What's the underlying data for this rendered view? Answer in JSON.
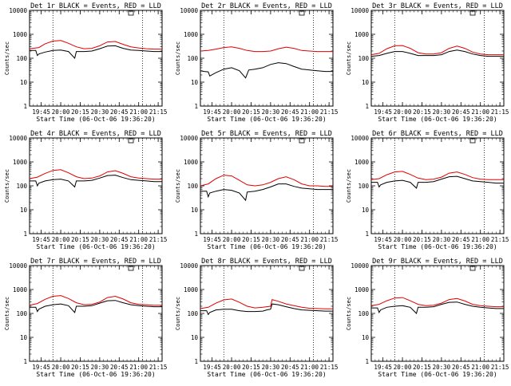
{
  "x_ticks": [
    "19:45",
    "20:00",
    "20:15",
    "20:30",
    "20:45",
    "21:00",
    "21:15"
  ],
  "y_ticks": [
    "1",
    "10",
    "100",
    "1000",
    "10000"
  ],
  "xlabel": "Start Time (06-Oct-06 19:36:20)",
  "ylabel": "Counts/sec",
  "colors": {
    "events": "#000000",
    "lld": "#e00000"
  },
  "chart_data": [
    {
      "type": "line",
      "title": "Det 1r BLACK = Events, RED = LLD",
      "xlim": [
        19.6,
        21.3
      ],
      "ylim": [
        1,
        10000
      ],
      "yscale": "log",
      "dotted_x": [
        19.9,
        21.05
      ],
      "series": [
        {
          "key": "lld",
          "x": [
            19.6,
            19.72,
            19.8,
            19.9,
            20.0,
            20.1,
            20.2,
            20.3,
            20.4,
            20.5,
            20.6,
            20.7,
            20.8,
            20.9,
            21.0,
            21.1,
            21.2,
            21.3
          ],
          "values": [
            250,
            280,
            400,
            520,
            550,
            420,
            300,
            250,
            260,
            330,
            480,
            500,
            380,
            300,
            270,
            250,
            240,
            240
          ]
        },
        {
          "key": "events",
          "x": [
            19.6,
            19.68,
            19.7,
            19.72,
            19.8,
            19.9,
            20.0,
            20.1,
            20.18,
            20.2,
            20.3,
            20.4,
            20.5,
            20.6,
            20.7,
            20.8,
            20.9,
            21.0,
            21.1,
            21.2,
            21.3
          ],
          "values": [
            210,
            210,
            130,
            150,
            180,
            210,
            220,
            190,
            100,
            190,
            190,
            200,
            250,
            320,
            330,
            260,
            220,
            210,
            200,
            190,
            190
          ]
        }
      ]
    },
    {
      "type": "line",
      "title": "Det 2r BLACK = Events, RED = LLD",
      "xlim": [
        19.6,
        21.3
      ],
      "ylim": [
        1,
        10000
      ],
      "yscale": "log",
      "dotted_x": [
        19.9,
        21.05
      ],
      "series": [
        {
          "key": "lld",
          "x": [
            19.6,
            19.7,
            19.8,
            19.9,
            20.0,
            20.1,
            20.2,
            20.3,
            20.4,
            20.5,
            20.6,
            20.7,
            20.8,
            20.9,
            21.0,
            21.1,
            21.2,
            21.3
          ],
          "values": [
            200,
            210,
            240,
            280,
            300,
            260,
            210,
            190,
            190,
            200,
            250,
            290,
            260,
            210,
            200,
            190,
            190,
            190
          ]
        },
        {
          "key": "events",
          "x": [
            19.6,
            19.65,
            19.7,
            19.72,
            19.8,
            19.9,
            20.0,
            20.1,
            20.18,
            20.22,
            20.3,
            20.4,
            20.5,
            20.6,
            20.7,
            20.8,
            20.9,
            21.0,
            21.1,
            21.2,
            21.3
          ],
          "values": [
            30,
            28,
            27,
            18,
            25,
            35,
            40,
            30,
            15,
            32,
            35,
            40,
            55,
            65,
            60,
            45,
            35,
            32,
            30,
            28,
            28
          ]
        }
      ]
    },
    {
      "type": "line",
      "title": "Det 3r BLACK = Events, RED = LLD",
      "xlim": [
        19.6,
        21.3
      ],
      "ylim": [
        1,
        10000
      ],
      "yscale": "log",
      "dotted_x": [
        19.9,
        21.05
      ],
      "series": [
        {
          "key": "lld",
          "x": [
            19.6,
            19.7,
            19.8,
            19.9,
            20.0,
            20.1,
            20.2,
            20.3,
            20.4,
            20.5,
            20.6,
            20.7,
            20.8,
            20.9,
            21.0,
            21.1,
            21.2,
            21.3
          ],
          "values": [
            140,
            160,
            250,
            330,
            340,
            260,
            170,
            150,
            150,
            170,
            260,
            320,
            260,
            180,
            150,
            140,
            140,
            140
          ]
        },
        {
          "key": "events",
          "x": [
            19.6,
            19.7,
            19.8,
            19.9,
            20.0,
            20.1,
            20.2,
            20.3,
            20.4,
            20.5,
            20.6,
            20.7,
            20.8,
            20.9,
            21.0,
            21.1,
            21.2,
            21.3
          ],
          "values": [
            120,
            130,
            160,
            190,
            190,
            160,
            130,
            130,
            130,
            140,
            190,
            220,
            190,
            150,
            130,
            120,
            120,
            120
          ]
        }
      ]
    },
    {
      "type": "line",
      "title": "Det 4r BLACK = Events, RED = LLD",
      "xlim": [
        19.6,
        21.3
      ],
      "ylim": [
        1,
        10000
      ],
      "yscale": "log",
      "dotted_x": [
        19.9,
        21.05
      ],
      "series": [
        {
          "key": "lld",
          "x": [
            19.6,
            19.7,
            19.8,
            19.9,
            20.0,
            20.1,
            20.2,
            20.3,
            20.4,
            20.5,
            20.6,
            20.7,
            20.8,
            20.9,
            21.0,
            21.1,
            21.2,
            21.3
          ],
          "values": [
            200,
            230,
            330,
            440,
            470,
            350,
            240,
            200,
            210,
            260,
            380,
            430,
            330,
            240,
            210,
            200,
            190,
            190
          ]
        },
        {
          "key": "events",
          "x": [
            19.6,
            19.68,
            19.7,
            19.72,
            19.8,
            19.9,
            20.0,
            20.1,
            20.18,
            20.2,
            20.3,
            20.4,
            20.5,
            20.6,
            20.7,
            20.8,
            20.9,
            21.0,
            21.1,
            21.2,
            21.3
          ],
          "values": [
            160,
            160,
            100,
            130,
            160,
            180,
            190,
            160,
            90,
            160,
            160,
            170,
            210,
            270,
            280,
            220,
            180,
            170,
            160,
            150,
            150
          ]
        }
      ]
    },
    {
      "type": "line",
      "title": "Det 5r BLACK = Events, RED = LLD",
      "xlim": [
        19.6,
        21.3
      ],
      "ylim": [
        1,
        10000
      ],
      "yscale": "log",
      "dotted_x": [
        19.9,
        21.05
      ],
      "series": [
        {
          "key": "lld",
          "x": [
            19.6,
            19.7,
            19.8,
            19.9,
            20.0,
            20.1,
            20.2,
            20.3,
            20.4,
            20.5,
            20.6,
            20.7,
            20.8,
            20.9,
            21.0,
            21.1,
            21.2,
            21.3
          ],
          "values": [
            100,
            120,
            200,
            280,
            260,
            170,
            110,
            100,
            110,
            140,
            200,
            240,
            180,
            120,
            100,
            100,
            95,
            95
          ]
        },
        {
          "key": "events",
          "x": [
            19.6,
            19.68,
            19.7,
            19.72,
            19.8,
            19.9,
            20.0,
            20.1,
            20.18,
            20.2,
            20.3,
            20.4,
            20.5,
            20.6,
            20.7,
            20.8,
            20.9,
            21.0,
            21.1,
            21.2,
            21.3
          ],
          "values": [
            60,
            60,
            35,
            50,
            60,
            70,
            65,
            50,
            25,
            55,
            60,
            70,
            90,
            120,
            120,
            95,
            80,
            75,
            70,
            70,
            70
          ]
        }
      ]
    },
    {
      "type": "line",
      "title": "Det 6r BLACK = Events, RED = LLD",
      "xlim": [
        19.6,
        21.3
      ],
      "ylim": [
        1,
        10000
      ],
      "yscale": "log",
      "dotted_x": [
        19.9,
        21.05
      ],
      "series": [
        {
          "key": "lld",
          "x": [
            19.6,
            19.7,
            19.8,
            19.9,
            20.0,
            20.1,
            20.2,
            20.3,
            20.4,
            20.5,
            20.6,
            20.7,
            20.8,
            20.9,
            21.0,
            21.1,
            21.2,
            21.3
          ],
          "values": [
            180,
            200,
            290,
            380,
            400,
            300,
            210,
            180,
            190,
            230,
            340,
            380,
            300,
            220,
            190,
            180,
            180,
            180
          ]
        },
        {
          "key": "events",
          "x": [
            19.6,
            19.68,
            19.7,
            19.72,
            19.8,
            19.9,
            20.0,
            20.1,
            20.18,
            20.2,
            20.3,
            20.4,
            20.5,
            20.6,
            20.7,
            20.8,
            20.9,
            21.0,
            21.1,
            21.2,
            21.3
          ],
          "values": [
            140,
            140,
            90,
            110,
            140,
            160,
            170,
            140,
            80,
            140,
            140,
            150,
            190,
            240,
            250,
            200,
            160,
            150,
            140,
            130,
            130
          ]
        }
      ]
    },
    {
      "type": "line",
      "title": "Det 7r BLACK = Events, RED = LLD",
      "xlim": [
        19.6,
        21.3
      ],
      "ylim": [
        1,
        10000
      ],
      "yscale": "log",
      "dotted_x": [
        19.9,
        21.05
      ],
      "series": [
        {
          "key": "lld",
          "x": [
            19.6,
            19.7,
            19.8,
            19.9,
            20.0,
            20.1,
            20.2,
            20.3,
            20.4,
            20.5,
            20.6,
            20.7,
            20.8,
            20.9,
            21.0,
            21.1,
            21.2,
            21.3
          ],
          "values": [
            220,
            260,
            390,
            520,
            560,
            420,
            280,
            230,
            240,
            300,
            460,
            520,
            400,
            280,
            240,
            230,
            220,
            220
          ]
        },
        {
          "key": "events",
          "x": [
            19.6,
            19.68,
            19.7,
            19.72,
            19.8,
            19.9,
            20.0,
            20.1,
            20.18,
            20.2,
            20.3,
            20.4,
            20.5,
            20.6,
            20.7,
            20.8,
            20.9,
            21.0,
            21.1,
            21.2,
            21.3
          ],
          "values": [
            180,
            180,
            120,
            150,
            200,
            230,
            250,
            210,
            110,
            200,
            200,
            210,
            270,
            340,
            350,
            280,
            230,
            210,
            200,
            190,
            190
          ]
        }
      ]
    },
    {
      "type": "line",
      "title": "Det 8r BLACK = Events, RED = LLD",
      "xlim": [
        19.6,
        21.3
      ],
      "ylim": [
        1,
        10000
      ],
      "yscale": "log",
      "dotted_x": [
        19.9,
        21.05
      ],
      "series": [
        {
          "key": "lld",
          "x": [
            19.6,
            19.7,
            19.8,
            19.9,
            20.0,
            20.1,
            20.2,
            20.3,
            20.4,
            20.45,
            20.5,
            20.52,
            20.6,
            20.7,
            20.8,
            20.9,
            21.0,
            21.1,
            21.2,
            21.3
          ],
          "values": [
            160,
            180,
            270,
            370,
            400,
            290,
            200,
            170,
            180,
            190,
            200,
            380,
            320,
            250,
            210,
            180,
            165,
            160,
            155,
            155
          ]
        },
        {
          "key": "events",
          "x": [
            19.6,
            19.68,
            19.7,
            19.72,
            19.8,
            19.9,
            20.0,
            20.1,
            20.2,
            20.3,
            20.4,
            20.45,
            20.5,
            20.52,
            20.6,
            20.7,
            20.8,
            20.9,
            21.0,
            21.1,
            21.2,
            21.3
          ],
          "values": [
            130,
            130,
            90,
            110,
            140,
            150,
            150,
            130,
            120,
            120,
            125,
            140,
            150,
            250,
            230,
            190,
            160,
            140,
            135,
            130,
            125,
            125
          ]
        }
      ]
    },
    {
      "type": "line",
      "title": "Det 9r BLACK = Events, RED = LLD",
      "xlim": [
        19.6,
        21.3
      ],
      "ylim": [
        1,
        10000
      ],
      "yscale": "log",
      "dotted_x": [
        19.9,
        21.05
      ],
      "series": [
        {
          "key": "lld",
          "x": [
            19.6,
            19.7,
            19.8,
            19.9,
            20.0,
            20.1,
            20.2,
            20.3,
            20.4,
            20.5,
            20.6,
            20.7,
            20.8,
            20.9,
            21.0,
            21.1,
            21.2,
            21.3
          ],
          "values": [
            210,
            240,
            340,
            440,
            460,
            340,
            240,
            210,
            220,
            270,
            380,
            420,
            330,
            240,
            210,
            200,
            190,
            190
          ]
        },
        {
          "key": "events",
          "x": [
            19.6,
            19.68,
            19.7,
            19.72,
            19.8,
            19.9,
            20.0,
            20.1,
            20.18,
            20.2,
            20.3,
            20.4,
            20.5,
            20.6,
            20.7,
            20.8,
            20.9,
            21.0,
            21.1,
            21.2,
            21.3
          ],
          "values": [
            170,
            170,
            110,
            140,
            180,
            200,
            210,
            180,
            100,
            180,
            180,
            190,
            240,
            290,
            300,
            240,
            200,
            180,
            170,
            160,
            160
          ]
        }
      ]
    }
  ]
}
